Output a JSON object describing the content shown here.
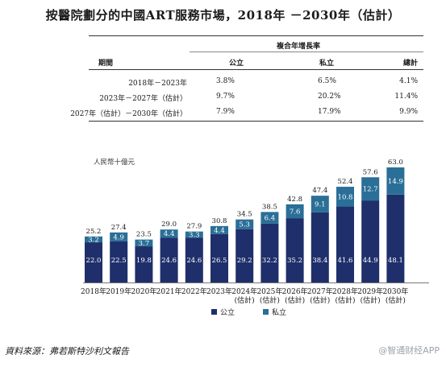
{
  "title": "按醫院劃分的中國ART服務市場，2018年 －2030年（估計）",
  "table": {
    "group_header": "複合年增長率",
    "columns": [
      "期間",
      "公立",
      "私立",
      "總計"
    ],
    "rows": [
      {
        "period": "2018年－2023年",
        "public": "3.8%",
        "private": "6.5%",
        "total": "4.1%"
      },
      {
        "period": "2023年－2027年（估計）",
        "public": "9.7%",
        "private": "20.2%",
        "total": "11.4%"
      },
      {
        "period": "2027年（估計）－2030年（估計）",
        "public": "7.9%",
        "private": "17.9%",
        "total": "9.9%"
      }
    ]
  },
  "chart_data": {
    "type": "bar",
    "stacked": true,
    "ylabel": "人民幣十億元",
    "categories": [
      [
        "2018年"
      ],
      [
        "2019年"
      ],
      [
        "2020年"
      ],
      [
        "2021年"
      ],
      [
        "2022年"
      ],
      [
        "2023年"
      ],
      [
        "2024年",
        "(估計)"
      ],
      [
        "2025年",
        "(估計)"
      ],
      [
        "2026年",
        "(估計)"
      ],
      [
        "2027年",
        "(估計)"
      ],
      [
        "2028年",
        "(估計)"
      ],
      [
        "2029年",
        "(估計)"
      ],
      [
        "2030年",
        "(估計)"
      ]
    ],
    "series": [
      {
        "name": "公立",
        "color": "#1f2f6b",
        "values": [
          22.0,
          22.5,
          19.8,
          24.6,
          24.6,
          26.5,
          29.2,
          32.2,
          35.2,
          38.4,
          41.6,
          44.9,
          48.1
        ]
      },
      {
        "name": "私立",
        "color": "#2a6f97",
        "values": [
          3.2,
          4.9,
          3.7,
          4.4,
          3.3,
          4.4,
          5.3,
          6.4,
          7.6,
          9.1,
          10.8,
          12.7,
          14.9
        ]
      }
    ],
    "totals": [
      25.2,
      27.4,
      23.5,
      29.0,
      27.9,
      30.8,
      34.5,
      38.5,
      42.8,
      47.4,
      52.4,
      57.6,
      63.0
    ],
    "legend_position": "bottom",
    "grid": false
  },
  "footer": "資料來源：弗若斯特沙利文報告",
  "watermark": "@智通财经APP"
}
